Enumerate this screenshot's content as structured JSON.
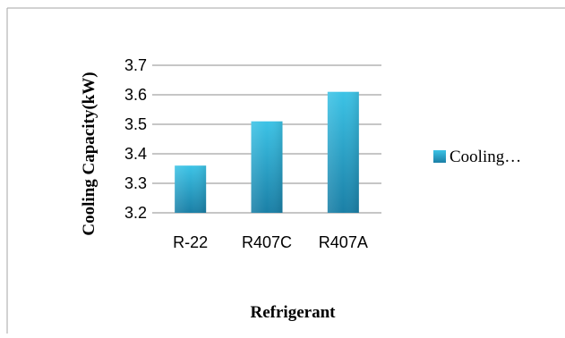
{
  "chart_data": {
    "type": "bar",
    "categories": [
      "R-22",
      "R407C",
      "R407A"
    ],
    "series": [
      {
        "name": "Cooling…",
        "values": [
          3.36,
          3.51,
          3.61
        ]
      }
    ],
    "title": "",
    "xlabel": "Refrigerant",
    "ylabel": "Cooling Capacity(kW)",
    "ylim": [
      3.2,
      3.7
    ],
    "yticks": [
      "3.2",
      "3.3",
      "3.4",
      "3.5",
      "3.6",
      "3.7"
    ],
    "grid": true,
    "legend": "right",
    "colors": {
      "bar_top": "#3cc3e6",
      "bar_bottom": "#1a7fa6",
      "grid": "#8c8c8c",
      "frame": "#a6a6a6"
    }
  }
}
